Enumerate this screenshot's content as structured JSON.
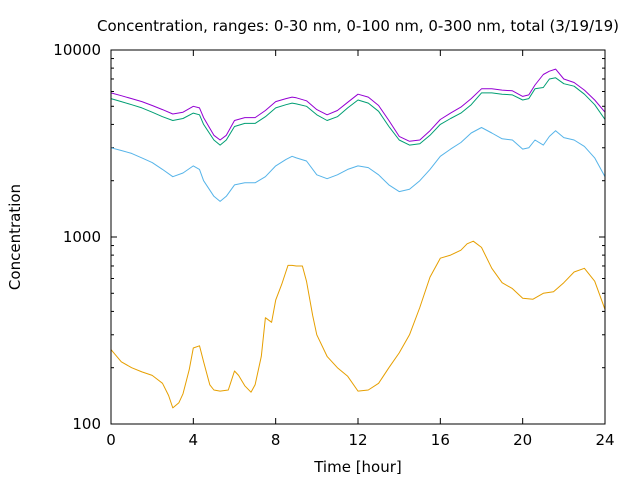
{
  "chart_data": {
    "type": "line",
    "title": "Concentration, ranges: 0-30 nm, 0-100 nm, 0-300 nm, total (3/19/19)",
    "xlabel": "Time [hour]",
    "ylabel": "Concentration",
    "xlim": [
      0,
      24
    ],
    "ylim": [
      100,
      10000
    ],
    "yscale": "log",
    "grid": false,
    "x_ticks": [
      0,
      4,
      8,
      12,
      16,
      20,
      24
    ],
    "y_ticks": [
      100,
      1000,
      10000
    ],
    "x_tick_labels": [
      "0",
      "4",
      "8",
      "12",
      "16",
      "20",
      "24"
    ],
    "y_tick_labels": [
      "100",
      "1000",
      "10000"
    ],
    "series": [
      {
        "color": "#e69f00",
        "x": [
          0,
          0.5,
          1,
          1.5,
          2,
          2.5,
          2.8,
          3,
          3.3,
          3.5,
          3.8,
          4.0,
          4.3,
          4.5,
          4.8,
          5.0,
          5.3,
          5.7,
          6.0,
          6.2,
          6.5,
          6.8,
          7.0,
          7.3,
          7.5,
          7.8,
          8.0,
          8.3,
          8.6,
          8.8,
          9.0,
          9.3,
          9.5,
          9.8,
          10.0,
          10.5,
          11.0,
          11.5,
          12.0,
          12.5,
          13.0,
          13.5,
          14.0,
          14.5,
          15.0,
          15.5,
          16.0,
          16.5,
          17.0,
          17.3,
          17.6,
          18.0,
          18.5,
          19.0,
          19.5,
          20.0,
          20.5,
          21.0,
          21.5,
          22.0,
          22.5,
          23.0,
          23.5,
          24.0
        ],
        "values": [
          250,
          215,
          200,
          190,
          182,
          165,
          142,
          122,
          130,
          145,
          195,
          255,
          262,
          215,
          162,
          152,
          150,
          152,
          192,
          182,
          160,
          148,
          162,
          230,
          370,
          350,
          460,
          560,
          705,
          705,
          700,
          700,
          580,
          380,
          300,
          230,
          200,
          180,
          150,
          152,
          165,
          200,
          240,
          300,
          420,
          610,
          770,
          800,
          850,
          920,
          950,
          880,
          680,
          570,
          530,
          470,
          465,
          500,
          510,
          570,
          650,
          680,
          580,
          410
        ]
      },
      {
        "color": "#56b4e9",
        "x": [
          0,
          0.5,
          1,
          1.5,
          2,
          2.5,
          3,
          3.5,
          4,
          4.3,
          4.5,
          5,
          5.3,
          5.6,
          6,
          6.5,
          7,
          7.5,
          8,
          8.5,
          8.8,
          9,
          9.5,
          10,
          10.5,
          11,
          11.5,
          12,
          12.5,
          13,
          13.5,
          14,
          14.5,
          15,
          15.5,
          16,
          16.5,
          17,
          17.5,
          18,
          18.5,
          19,
          19.5,
          20,
          20.3,
          20.6,
          21,
          21.3,
          21.6,
          22,
          22.5,
          23,
          23.5,
          24
        ],
        "values": [
          3000,
          2900,
          2800,
          2650,
          2500,
          2300,
          2100,
          2200,
          2400,
          2300,
          2000,
          1650,
          1550,
          1650,
          1900,
          1950,
          1950,
          2100,
          2400,
          2600,
          2700,
          2650,
          2550,
          2150,
          2050,
          2150,
          2300,
          2400,
          2350,
          2150,
          1900,
          1750,
          1800,
          2000,
          2300,
          2700,
          2950,
          3200,
          3600,
          3850,
          3600,
          3350,
          3300,
          2950,
          3000,
          3300,
          3100,
          3450,
          3700,
          3400,
          3300,
          3050,
          2650,
          2100
        ]
      },
      {
        "color": "#009e73",
        "x": [
          0,
          0.5,
          1,
          1.5,
          2,
          2.5,
          3,
          3.5,
          4,
          4.3,
          4.5,
          5,
          5.3,
          5.6,
          6,
          6.5,
          7,
          7.5,
          8,
          8.5,
          8.8,
          9,
          9.5,
          10,
          10.5,
          11,
          11.5,
          12,
          12.5,
          13,
          13.5,
          14,
          14.5,
          15,
          15.5,
          16,
          16.5,
          17,
          17.5,
          18,
          18.5,
          19,
          19.5,
          20,
          20.3,
          20.6,
          21,
          21.3,
          21.6,
          22,
          22.5,
          23,
          23.5,
          24
        ],
        "values": [
          5500,
          5300,
          5100,
          4900,
          4650,
          4400,
          4200,
          4300,
          4600,
          4500,
          4000,
          3300,
          3100,
          3300,
          3900,
          4050,
          4050,
          4400,
          4900,
          5100,
          5200,
          5150,
          5000,
          4500,
          4200,
          4400,
          4900,
          5400,
          5200,
          4700,
          3900,
          3300,
          3100,
          3150,
          3500,
          4000,
          4300,
          4600,
          5100,
          5900,
          5900,
          5800,
          5750,
          5400,
          5500,
          6200,
          6300,
          7000,
          7100,
          6600,
          6400,
          5800,
          5100,
          4250
        ]
      },
      {
        "color": "#9400d3",
        "x": [
          0,
          0.5,
          1,
          1.5,
          2,
          2.5,
          3,
          3.5,
          4,
          4.3,
          4.5,
          5,
          5.3,
          5.6,
          6,
          6.5,
          7,
          7.5,
          8,
          8.5,
          8.8,
          9,
          9.5,
          10,
          10.5,
          11,
          11.5,
          12,
          12.5,
          13,
          13.5,
          14,
          14.5,
          15,
          15.5,
          16,
          16.5,
          17,
          17.5,
          18,
          18.5,
          19,
          19.5,
          20,
          20.3,
          20.6,
          21,
          21.3,
          21.6,
          22,
          22.5,
          23,
          23.5,
          24
        ],
        "values": [
          5900,
          5700,
          5500,
          5300,
          5050,
          4800,
          4550,
          4650,
          5000,
          4900,
          4350,
          3500,
          3300,
          3500,
          4200,
          4350,
          4350,
          4750,
          5300,
          5500,
          5600,
          5550,
          5350,
          4800,
          4500,
          4750,
          5250,
          5800,
          5600,
          5050,
          4200,
          3450,
          3250,
          3300,
          3700,
          4250,
          4600,
          4950,
          5500,
          6200,
          6200,
          6100,
          6050,
          5650,
          5750,
          6500,
          7400,
          7700,
          7900,
          7000,
          6700,
          6100,
          5400,
          4650
        ]
      }
    ]
  }
}
